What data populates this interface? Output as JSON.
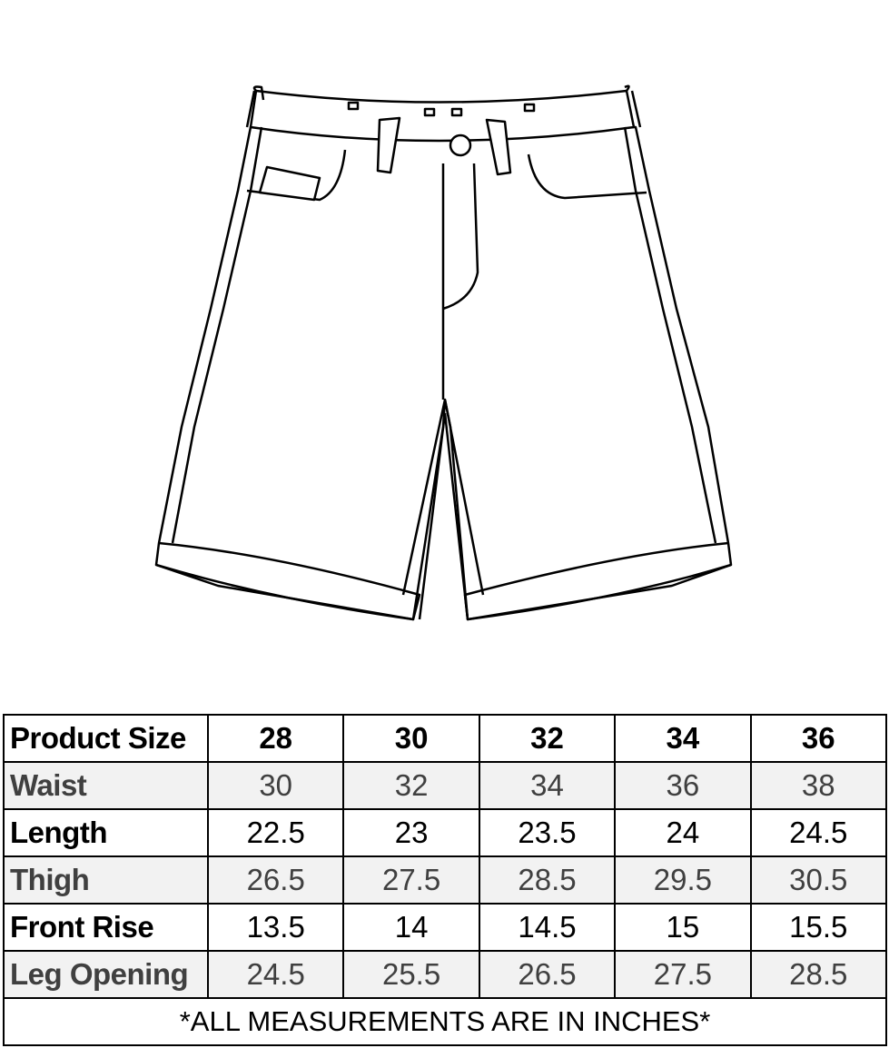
{
  "illustration": {
    "subject": "shorts-flat-sketch"
  },
  "size_chart": {
    "header": {
      "label": "Product Size",
      "sizes": [
        "28",
        "30",
        "32",
        "34",
        "36"
      ]
    },
    "rows": [
      {
        "label": "Waist",
        "values": [
          "30",
          "32",
          "34",
          "36",
          "38"
        ]
      },
      {
        "label": "Length",
        "values": [
          "22.5",
          "23",
          "23.5",
          "24",
          "24.5"
        ]
      },
      {
        "label": "Thigh",
        "values": [
          "26.5",
          "27.5",
          "28.5",
          "29.5",
          "30.5"
        ]
      },
      {
        "label": "Front Rise",
        "values": [
          "13.5",
          "14",
          "14.5",
          "15",
          "15.5"
        ]
      },
      {
        "label": "Leg Opening",
        "values": [
          "24.5",
          "25.5",
          "26.5",
          "27.5",
          "28.5"
        ]
      }
    ],
    "note": "*ALL MEASUREMENTS ARE IN INCHES*",
    "colors": {
      "alt_row_bg": "#f2f2f2",
      "alt_row_text": "#404040",
      "border": "#000000"
    }
  }
}
